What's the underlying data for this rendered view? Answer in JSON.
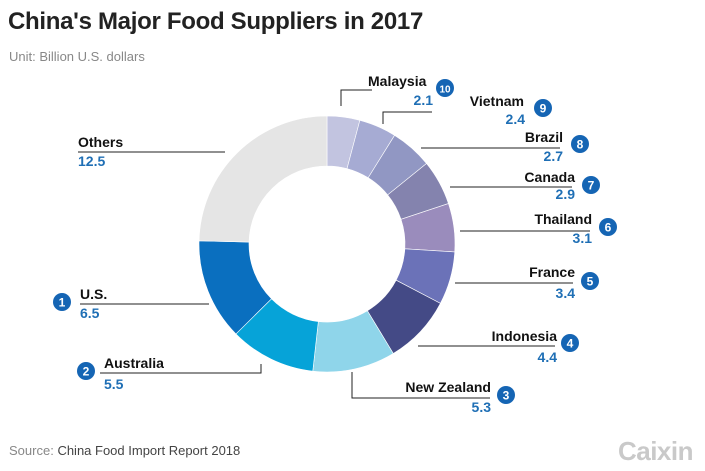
{
  "title": "China's Major Food Suppliers in 2017",
  "subtitle": "Unit: Billion U.S. dollars",
  "footer": {
    "source_label": "Source:",
    "source_text": "China Food Import Report 2018"
  },
  "logo_text": "Caixin",
  "colors": {
    "title": "#222222",
    "label": "#111111",
    "value": "#1f6fb5",
    "badge": "#1565b4"
  },
  "chart_data": {
    "type": "pie",
    "donut": true,
    "unit": "Billion U.S. dollars",
    "slices": [
      {
        "rank": 10,
        "name": "Malaysia",
        "value": 2.1,
        "color": "#c2c4e0"
      },
      {
        "rank": 9,
        "name": "Vietnam",
        "value": 2.4,
        "color": "#a6abd3"
      },
      {
        "rank": 8,
        "name": "Brazil",
        "value": 2.7,
        "color": "#9197c3"
      },
      {
        "rank": 7,
        "name": "Canada",
        "value": 2.9,
        "color": "#8483ae"
      },
      {
        "rank": 6,
        "name": "Thailand",
        "value": 3.1,
        "color": "#9a8cbc"
      },
      {
        "rank": 5,
        "name": "France",
        "value": 3.4,
        "color": "#6b72b8"
      },
      {
        "rank": 4,
        "name": "Indonesia",
        "value": 4.4,
        "color": "#444a86"
      },
      {
        "rank": 3,
        "name": "New Zealand",
        "value": 5.3,
        "color": "#8fd5ea"
      },
      {
        "rank": 2,
        "name": "Australia",
        "value": 5.5,
        "color": "#06a3d8"
      },
      {
        "rank": 1,
        "name": "U.S.",
        "value": 6.5,
        "color": "#0a6fbf"
      },
      {
        "rank": null,
        "name": "Others",
        "value": 12.5,
        "color": "#e5e5e5"
      }
    ]
  }
}
